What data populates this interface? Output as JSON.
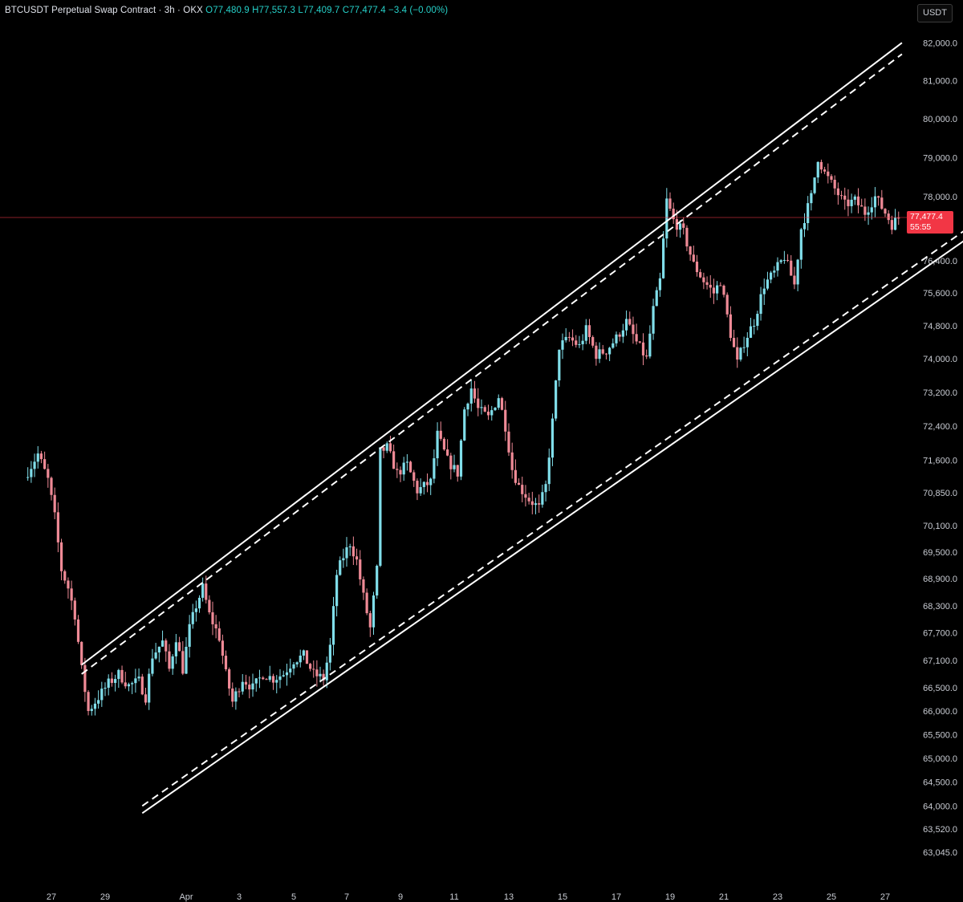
{
  "legend": {
    "symbol": "BTCUSDT Perpetual Swap Contract · 3h · OKX",
    "open": "O77,480.9",
    "high": "H77,557.3",
    "low": "L77,409.7",
    "close": "C77,477.4",
    "change": "−3.4 (−0.00%)"
  },
  "currency_label": "USDT",
  "last_price": {
    "value": "77,477.4",
    "countdown": "55:55",
    "price": 77477.4
  },
  "colors": {
    "up": "#80deea",
    "down": "#ef8a96",
    "background": "#000000",
    "channel": "#ffffff",
    "last_price_line": "#f23645"
  },
  "chart_data": {
    "type": "candlestick",
    "title": "BTCUSDT Perpetual Swap Contract · 3h · OKX",
    "xlabel": "",
    "ylabel": "",
    "x_ticks": [
      "27",
      "29",
      "Apr",
      "3",
      "5",
      "7",
      "9",
      "11",
      "13",
      "15",
      "17",
      "19",
      "21",
      "23",
      "25",
      "27"
    ],
    "x_tick_dates": [
      "2024-03-27",
      "2024-03-29",
      "2024-04-01",
      "2024-04-03",
      "2024-04-05",
      "2024-04-07",
      "2024-04-09",
      "2024-04-11",
      "2024-04-13",
      "2024-04-15",
      "2024-04-17",
      "2024-04-19",
      "2024-04-21",
      "2024-04-23",
      "2024-04-25",
      "2024-04-27"
    ],
    "y_ticks": [
      82000,
      81000,
      80000,
      79000,
      78000,
      76400,
      75600,
      74800,
      74000,
      73200,
      72400,
      71600,
      70850,
      70100,
      69500,
      68900,
      68300,
      67700,
      67100,
      66500,
      66000,
      65500,
      65000,
      64500,
      64000,
      63520,
      63045
    ],
    "y_tick_labels": [
      "82,000.0",
      "81,000.0",
      "80,000.0",
      "79,000.0",
      "78,000.0",
      "76,400.0",
      "75,600.0",
      "74,800.0",
      "74,000.0",
      "73,200.0",
      "72,400.0",
      "71,600.0",
      "70,850.0",
      "70,100.0",
      "69,500.0",
      "68,900.0",
      "68,300.0",
      "67,700.0",
      "67,100.0",
      "66,500.0",
      "66,000.0",
      "65,500.0",
      "65,000.0",
      "64,500.0",
      "64,000.0",
      "63,520.0",
      "63,045.0"
    ],
    "ylim": [
      62700,
      82200
    ],
    "y_scale": "log",
    "close_path": [
      [
        "2024-03-26T00:00",
        71200
      ],
      [
        "2024-03-26T12:00",
        71750
      ],
      [
        "2024-03-26T21:00",
        71150
      ],
      [
        "2024-03-27T03:00",
        70300
      ],
      [
        "2024-03-27T09:00",
        69100
      ],
      [
        "2024-03-27T15:00",
        68700
      ],
      [
        "2024-03-27T21:00",
        68100
      ],
      [
        "2024-03-28T03:00",
        66900
      ],
      [
        "2024-03-28T09:00",
        66000
      ],
      [
        "2024-03-28T18:00",
        66300
      ],
      [
        "2024-03-29T03:00",
        66600
      ],
      [
        "2024-03-29T12:00",
        66800
      ],
      [
        "2024-03-29T21:00",
        66550
      ],
      [
        "2024-03-30T06:00",
        66650
      ],
      [
        "2024-03-30T12:00",
        66300
      ],
      [
        "2024-03-30T18:00",
        67200
      ],
      [
        "2024-03-31T03:00",
        67500
      ],
      [
        "2024-03-31T09:00",
        66900
      ],
      [
        "2024-03-31T15:00",
        67600
      ],
      [
        "2024-03-31T21:00",
        66900
      ],
      [
        "2024-04-01T03:00",
        67800
      ],
      [
        "2024-04-01T09:00",
        68300
      ],
      [
        "2024-04-01T15:00",
        68700
      ],
      [
        "2024-04-01T21:00",
        68100
      ],
      [
        "2024-04-02T06:00",
        67600
      ],
      [
        "2024-04-02T12:00",
        66800
      ],
      [
        "2024-04-02T18:00",
        66200
      ],
      [
        "2024-04-03T03:00",
        66700
      ],
      [
        "2024-04-03T12:00",
        66500
      ],
      [
        "2024-04-03T21:00",
        66800
      ],
      [
        "2024-04-04T06:00",
        66700
      ],
      [
        "2024-04-04T15:00",
        66800
      ],
      [
        "2024-04-05T00:00",
        67100
      ],
      [
        "2024-04-05T09:00",
        67200
      ],
      [
        "2024-04-05T18:00",
        66800
      ],
      [
        "2024-04-06T03:00",
        66700
      ],
      [
        "2024-04-06T09:00",
        67400
      ],
      [
        "2024-04-06T15:00",
        69000
      ],
      [
        "2024-04-06T21:00",
        69400
      ],
      [
        "2024-04-07T03:00",
        69700
      ],
      [
        "2024-04-07T09:00",
        69300
      ],
      [
        "2024-04-07T15:00",
        68500
      ],
      [
        "2024-04-07T21:00",
        67800
      ],
      [
        "2024-04-08T03:00",
        69100
      ],
      [
        "2024-04-08T06:00",
        71800
      ],
      [
        "2024-04-08T12:00",
        71900
      ],
      [
        "2024-04-08T21:00",
        71300
      ],
      [
        "2024-04-09T06:00",
        71500
      ],
      [
        "2024-04-09T15:00",
        70900
      ],
      [
        "2024-04-09T21:00",
        71000
      ],
      [
        "2024-04-10T03:00",
        71100
      ],
      [
        "2024-04-10T09:00",
        72200
      ],
      [
        "2024-04-10T18:00",
        71600
      ],
      [
        "2024-04-11T03:00",
        71300
      ],
      [
        "2024-04-11T09:00",
        72800
      ],
      [
        "2024-04-11T15:00",
        73300
      ],
      [
        "2024-04-11T21:00",
        72800
      ],
      [
        "2024-04-12T06:00",
        72600
      ],
      [
        "2024-04-12T15:00",
        73100
      ],
      [
        "2024-04-12T21:00",
        72400
      ],
      [
        "2024-04-13T03:00",
        71400
      ],
      [
        "2024-04-13T09:00",
        71000
      ],
      [
        "2024-04-13T18:00",
        70700
      ],
      [
        "2024-04-14T03:00",
        70500
      ],
      [
        "2024-04-14T09:00",
        71000
      ],
      [
        "2024-04-14T15:00",
        72500
      ],
      [
        "2024-04-14T21:00",
        74300
      ],
      [
        "2024-04-15T06:00",
        74500
      ],
      [
        "2024-04-15T15:00",
        74300
      ],
      [
        "2024-04-15T21:00",
        74700
      ],
      [
        "2024-04-16T06:00",
        74100
      ],
      [
        "2024-04-16T15:00",
        74200
      ],
      [
        "2024-04-17T00:00",
        74500
      ],
      [
        "2024-04-17T09:00",
        74900
      ],
      [
        "2024-04-17T18:00",
        74400
      ],
      [
        "2024-04-18T03:00",
        74000
      ],
      [
        "2024-04-18T09:00",
        75200
      ],
      [
        "2024-04-18T15:00",
        75900
      ],
      [
        "2024-04-18T21:00",
        77900
      ],
      [
        "2024-04-19T03:00",
        77400
      ],
      [
        "2024-04-19T12:00",
        77100
      ],
      [
        "2024-04-19T21:00",
        76300
      ],
      [
        "2024-04-20T06:00",
        75900
      ],
      [
        "2024-04-20T15:00",
        75600
      ],
      [
        "2024-04-20T21:00",
        75900
      ],
      [
        "2024-04-21T06:00",
        74600
      ],
      [
        "2024-04-21T12:00",
        73900
      ],
      [
        "2024-04-21T18:00",
        74400
      ],
      [
        "2024-04-22T03:00",
        74900
      ],
      [
        "2024-04-22T12:00",
        75800
      ],
      [
        "2024-04-22T21:00",
        76100
      ],
      [
        "2024-04-23T06:00",
        76500
      ],
      [
        "2024-04-23T15:00",
        75800
      ],
      [
        "2024-04-23T21:00",
        77200
      ],
      [
        "2024-04-24T06:00",
        78000
      ],
      [
        "2024-04-24T12:00",
        79000
      ],
      [
        "2024-04-24T18:00",
        78600
      ],
      [
        "2024-04-25T03:00",
        78200
      ],
      [
        "2024-04-25T12:00",
        77800
      ],
      [
        "2024-04-25T21:00",
        77900
      ],
      [
        "2024-04-26T06:00",
        77600
      ],
      [
        "2024-04-26T15:00",
        78000
      ],
      [
        "2024-04-27T00:00",
        77600
      ],
      [
        "2024-04-27T06:00",
        77300
      ],
      [
        "2024-04-27T12:00",
        77480
      ]
    ],
    "channel": {
      "upper_solid": [
        [
          "2024-03-28T03:00",
          67000
        ],
        [
          "2024-04-27T15:00",
          82000
        ]
      ],
      "upper_dashed": [
        [
          "2024-03-28T03:00",
          66800
        ],
        [
          "2024-04-27T15:00",
          81700
        ]
      ],
      "lower_dashed": [
        [
          "2024-03-30T09:00",
          64000
        ],
        [
          "2024-04-30T09:00",
          77350
        ]
      ],
      "lower_solid": [
        [
          "2024-03-30T09:00",
          63850
        ],
        [
          "2024-04-30T09:00",
          77100
        ]
      ]
    },
    "grid": false,
    "legend_position": "top-left"
  }
}
